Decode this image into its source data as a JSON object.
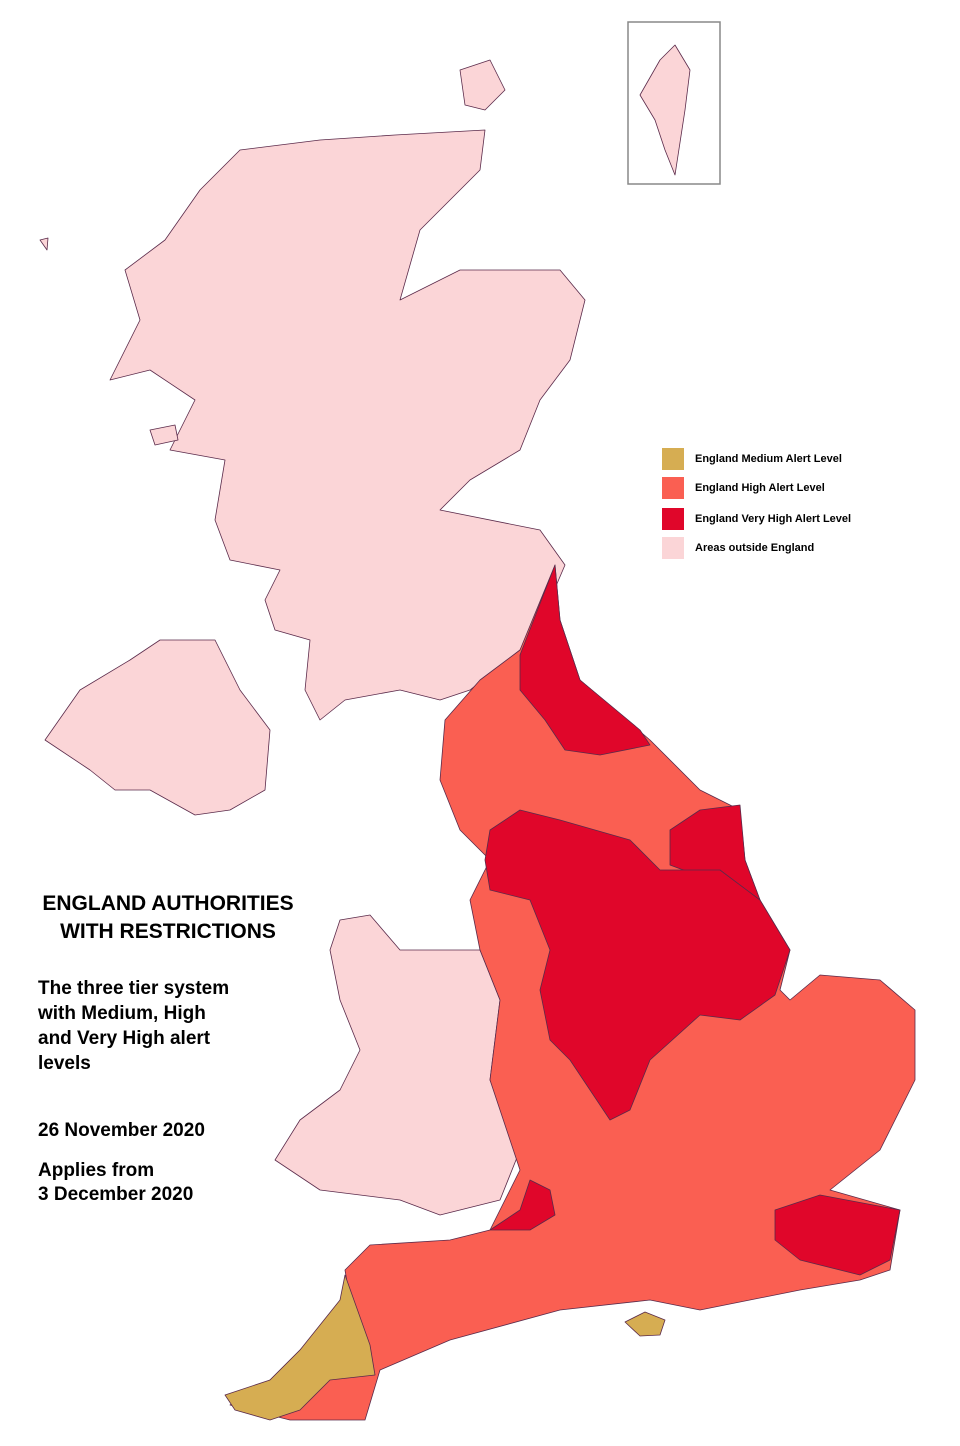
{
  "title": [
    "ENGLAND  AUTHORITIES",
    "WITH RESTRICTIONS"
  ],
  "subtitle": [
    "The three tier system",
    "with Medium, High",
    "and Very High alert",
    "levels"
  ],
  "date": "26 November 2020",
  "applies": [
    "Applies from",
    "3 December 2020"
  ],
  "legend": [
    {
      "label": "England Medium Alert Level",
      "color": "#d6ad52"
    },
    {
      "label": "England High Alert Level",
      "color": "#fa5f52"
    },
    {
      "label": "England Very High Alert Level",
      "color": "#e0062a"
    },
    {
      "label": "Areas  outside England",
      "color": "#fbd5d7"
    }
  ]
}
